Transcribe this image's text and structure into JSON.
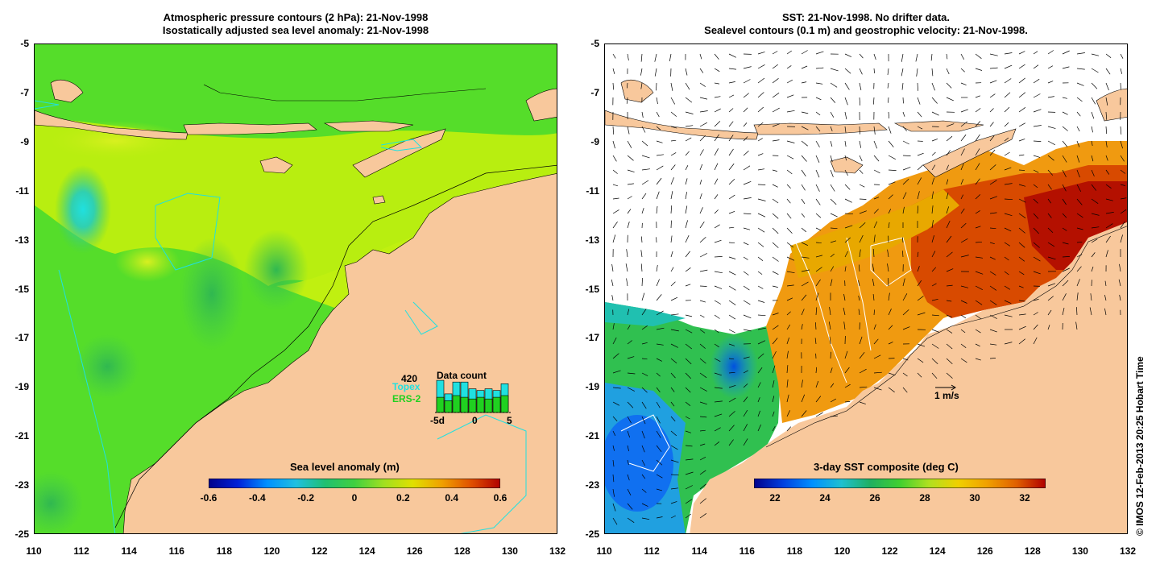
{
  "left_panel": {
    "title_line1": "Atmospheric pressure contours (2 hPa): 21-Nov-1998",
    "title_line2": "Isostatically adjusted sea level anomaly: 21-Nov-1998",
    "colorbar": {
      "title": "Sea level anomaly (m)",
      "ticks": [
        "-0.6",
        "-0.4",
        "-0.2",
        "0",
        "0.2",
        "0.4",
        "0.6"
      ],
      "colors": [
        "#00008b",
        "#0020d8",
        "#0090ff",
        "#20c0e0",
        "#20c070",
        "#40d040",
        "#a0e020",
        "#e0e000",
        "#f0a000",
        "#e05000",
        "#b00000"
      ]
    },
    "data_count": {
      "title": "Data count",
      "max_label": "420",
      "topex_label": "Topex",
      "ers_label": "ERS-2",
      "x_ticks": [
        "-5d",
        "0",
        "5"
      ],
      "topex_color": "#20e0e0",
      "ers_color": "#20d020",
      "topex_values": [
        0.95,
        0.55,
        0.9,
        0.9,
        0.7,
        0.65,
        0.7,
        0.65,
        0.85
      ],
      "ers_values": [
        0.45,
        0.35,
        0.5,
        0.45,
        0.4,
        0.45,
        0.4,
        0.45,
        0.5
      ]
    }
  },
  "right_panel": {
    "title_line1": "SST: 21-Nov-1998. No drifter data.",
    "title_line2": "Sealevel contours (0.1 m) and geostrophic velocity: 21-Nov-1998.",
    "colorbar": {
      "title": "3-day SST composite (deg C)",
      "ticks": [
        "22",
        "24",
        "26",
        "28",
        "30",
        "32"
      ],
      "colors": [
        "#00008b",
        "#0040e0",
        "#0090ff",
        "#20c0d0",
        "#20b060",
        "#40d030",
        "#b0e020",
        "#f0d000",
        "#f0a000",
        "#e06000",
        "#b00000"
      ]
    },
    "velocity_scale": "1 m/s"
  },
  "axes": {
    "y_ticks": [
      "-5",
      "-7",
      "-9",
      "-11",
      "-13",
      "-15",
      "-17",
      "-19",
      "-21",
      "-23",
      "-25"
    ],
    "x_ticks": [
      "110",
      "112",
      "114",
      "116",
      "118",
      "120",
      "122",
      "124",
      "126",
      "128",
      "130",
      "132"
    ],
    "ylim": [
      -25,
      -5
    ],
    "xlim": [
      110,
      132
    ]
  },
  "credit": "© IMOS 12-Feb-2013 20:25 Hobart Time",
  "colors": {
    "land": "#f8c89c",
    "ocean_base": "#55dd2a",
    "no_data": "#ffffff"
  }
}
